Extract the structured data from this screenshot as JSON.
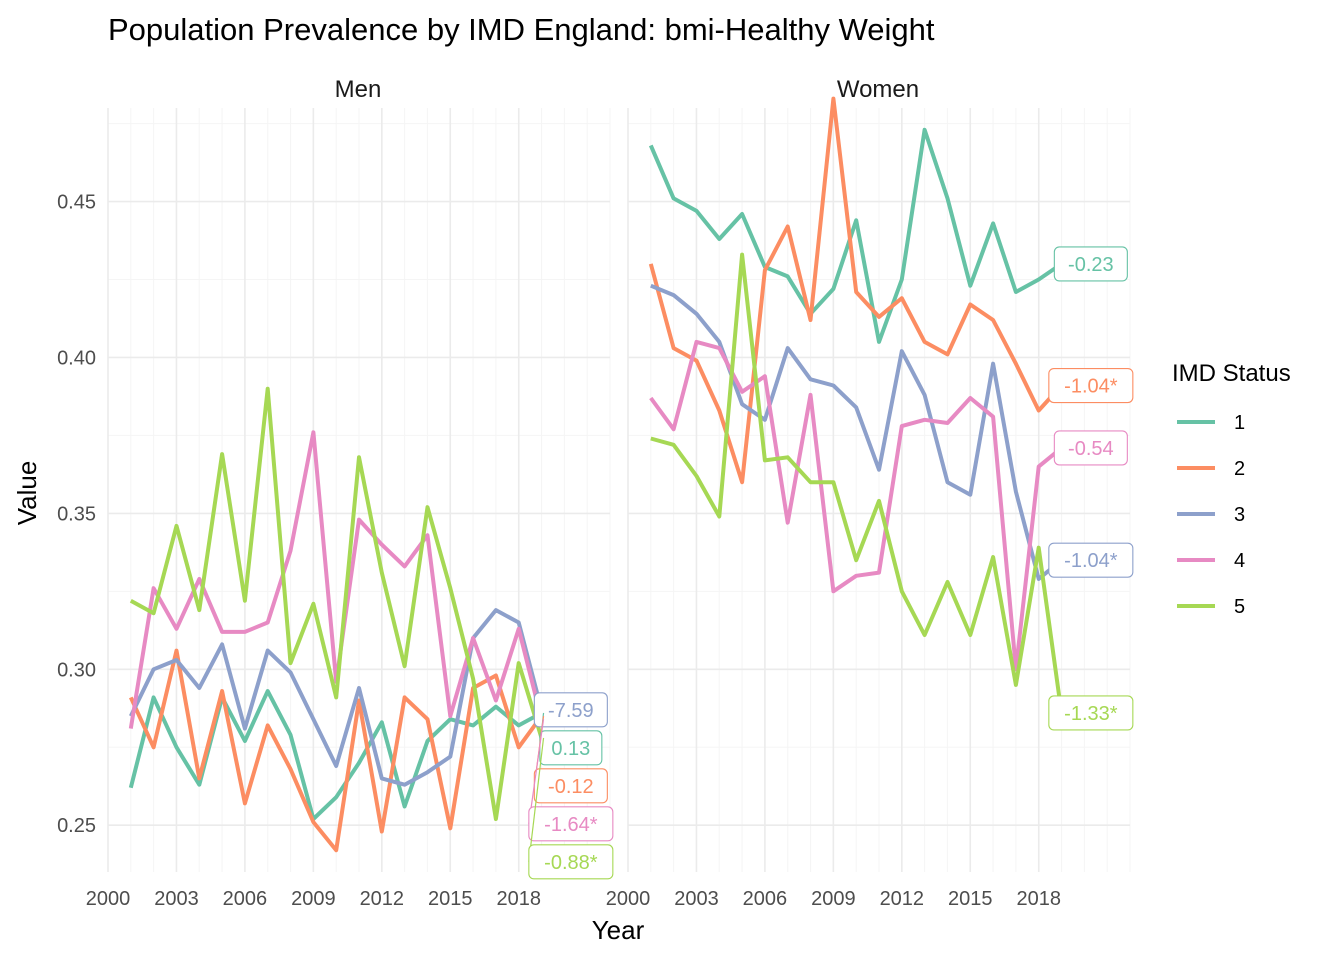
{
  "chart_data": {
    "type": "line",
    "title": "Population Prevalence by IMD England: bmi-Healthy Weight",
    "xlabel": "Year",
    "ylabel": "Value",
    "x_ticks": [
      "2000",
      "2003",
      "2006",
      "2009",
      "2012",
      "2015",
      "2018"
    ],
    "y_ticks": [
      "0.25",
      "0.30",
      "0.35",
      "0.40",
      "0.45"
    ],
    "xlim": [
      2000,
      2022
    ],
    "ylim": [
      0.235,
      0.48
    ],
    "grid": true,
    "legend": {
      "title": "IMD Status",
      "position": "right",
      "entries": [
        "1",
        "2",
        "3",
        "4",
        "5"
      ]
    },
    "colors": {
      "1": "#66C2A5",
      "2": "#FC8D62",
      "3": "#8DA0CB",
      "4": "#E78AC3",
      "5": "#A6D854"
    },
    "years": [
      2001,
      2002,
      2003,
      2004,
      2005,
      2006,
      2007,
      2008,
      2009,
      2010,
      2011,
      2012,
      2013,
      2014,
      2015,
      2016,
      2017,
      2018,
      2019
    ],
    "facets": [
      {
        "label": "Men",
        "series": [
          {
            "name": "1",
            "values": [
              0.262,
              0.291,
              0.275,
              0.263,
              0.291,
              0.277,
              0.293,
              0.279,
              0.252,
              0.259,
              0.27,
              0.283,
              0.256,
              0.277,
              0.284,
              0.282,
              0.288,
              0.282,
              0.286
            ],
            "annotation": "0.13"
          },
          {
            "name": "2",
            "values": [
              0.291,
              0.275,
              0.306,
              0.265,
              0.293,
              0.257,
              0.282,
              0.268,
              0.251,
              0.242,
              0.29,
              0.248,
              0.291,
              0.284,
              0.249,
              0.294,
              0.298,
              0.275,
              0.285
            ],
            "annotation": "-0.12"
          },
          {
            "name": "3",
            "values": [
              0.285,
              0.3,
              0.303,
              0.294,
              0.308,
              0.281,
              0.306,
              0.299,
              0.284,
              0.269,
              0.294,
              0.265,
              0.263,
              0.267,
              0.272,
              0.31,
              0.319,
              0.315,
              0.287
            ],
            "annotation": "-7.59"
          },
          {
            "name": "4",
            "values": [
              0.281,
              0.326,
              0.313,
              0.329,
              0.312,
              0.312,
              0.315,
              0.338,
              0.376,
              0.296,
              0.348,
              0.34,
              0.333,
              0.343,
              0.285,
              0.31,
              0.29,
              0.313,
              0.284
            ],
            "annotation": "-1.64*"
          },
          {
            "name": "5",
            "values": [
              0.322,
              0.318,
              0.346,
              0.319,
              0.369,
              0.322,
              0.39,
              0.302,
              0.321,
              0.291,
              0.368,
              0.331,
              0.301,
              0.352,
              0.326,
              0.297,
              0.252,
              0.302,
              0.278
            ],
            "annotation": "-0.88*"
          }
        ]
      },
      {
        "label": "Women",
        "series": [
          {
            "name": "1",
            "values": [
              0.468,
              0.451,
              0.447,
              0.438,
              0.446,
              0.429,
              0.426,
              0.414,
              0.422,
              0.444,
              0.405,
              0.425,
              0.473,
              0.451,
              0.423,
              0.443,
              0.421,
              0.425,
              0.43
            ],
            "annotation": "-0.23"
          },
          {
            "name": "2",
            "values": [
              0.43,
              0.403,
              0.399,
              0.383,
              0.36,
              0.428,
              0.442,
              0.412,
              0.483,
              0.421,
              0.413,
              0.419,
              0.405,
              0.401,
              0.417,
              0.412,
              0.398,
              0.383,
              0.391
            ],
            "annotation": "-1.04*"
          },
          {
            "name": "3",
            "values": [
              0.423,
              0.42,
              0.414,
              0.405,
              0.385,
              0.38,
              0.403,
              0.393,
              0.391,
              0.384,
              0.364,
              0.402,
              0.388,
              0.36,
              0.356,
              0.398,
              0.357,
              0.329,
              0.335
            ],
            "annotation": "-1.04*"
          },
          {
            "name": "4",
            "values": [
              0.387,
              0.377,
              0.405,
              0.403,
              0.389,
              0.394,
              0.347,
              0.388,
              0.325,
              0.33,
              0.331,
              0.378,
              0.38,
              0.379,
              0.387,
              0.381,
              0.3,
              0.365,
              0.371
            ],
            "annotation": "-0.54"
          },
          {
            "name": "5",
            "values": [
              0.374,
              0.372,
              0.362,
              0.349,
              0.433,
              0.367,
              0.368,
              0.36,
              0.36,
              0.335,
              0.354,
              0.325,
              0.311,
              0.328,
              0.311,
              0.336,
              0.295,
              0.339,
              0.286
            ],
            "annotation": "-1.33*"
          }
        ]
      }
    ]
  }
}
